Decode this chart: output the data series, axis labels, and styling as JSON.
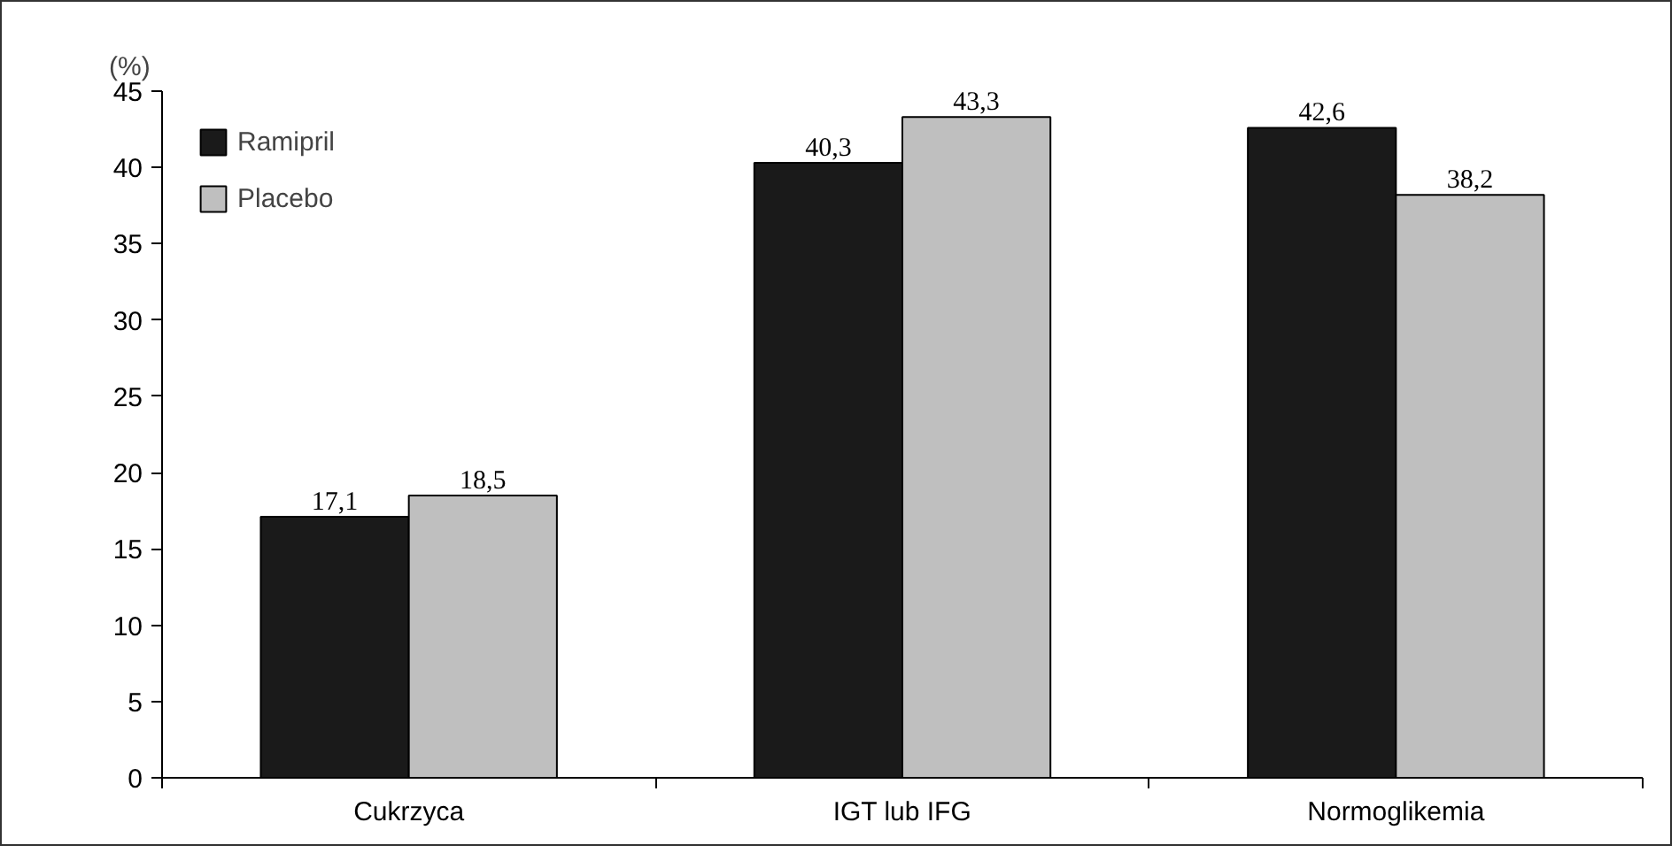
{
  "chart_data": {
    "type": "bar",
    "ylabel": "(%)",
    "categories": [
      "Cukrzyca",
      "IGT lub IFG",
      "Normoglikemia"
    ],
    "series": [
      {
        "name": "Ramipril",
        "color": "#1a1a1a",
        "values": [
          17.1,
          40.3,
          42.6
        ],
        "value_labels": [
          "17,1",
          "40,3",
          "42,6"
        ]
      },
      {
        "name": "Placebo",
        "color": "#bfbfbf",
        "values": [
          18.5,
          43.3,
          38.2
        ],
        "value_labels": [
          "18,5",
          "43,3",
          "38,2"
        ]
      }
    ],
    "ylim": [
      0,
      45
    ],
    "yticks": [
      0,
      5,
      10,
      15,
      20,
      25,
      30,
      35,
      40,
      45
    ],
    "grid": false,
    "legend": "top left"
  }
}
